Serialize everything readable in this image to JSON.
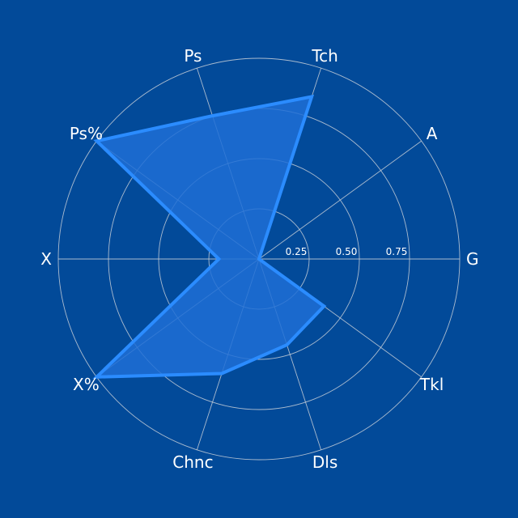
{
  "chart_data": {
    "type": "radar",
    "categories": [
      "G",
      "A",
      "Tch",
      "Ps",
      "Ps%",
      "X",
      "X%",
      "Chnc",
      "Dls",
      "Tkl"
    ],
    "values": [
      0.0,
      0.0,
      0.85,
      0.75,
      1.0,
      0.2,
      1.0,
      0.6,
      0.45,
      0.4
    ],
    "rlim": [
      0,
      1.0
    ],
    "rticks": [
      0.25,
      0.5,
      0.75
    ],
    "rtick_labels": [
      "0.25",
      "0.50",
      "0.75"
    ],
    "grid": true,
    "colors": {
      "background": "#024a99",
      "fill": "#1f6fd6",
      "line": "#2b8cff",
      "grid": "#c8cfd8",
      "text": "#ffffff"
    }
  }
}
